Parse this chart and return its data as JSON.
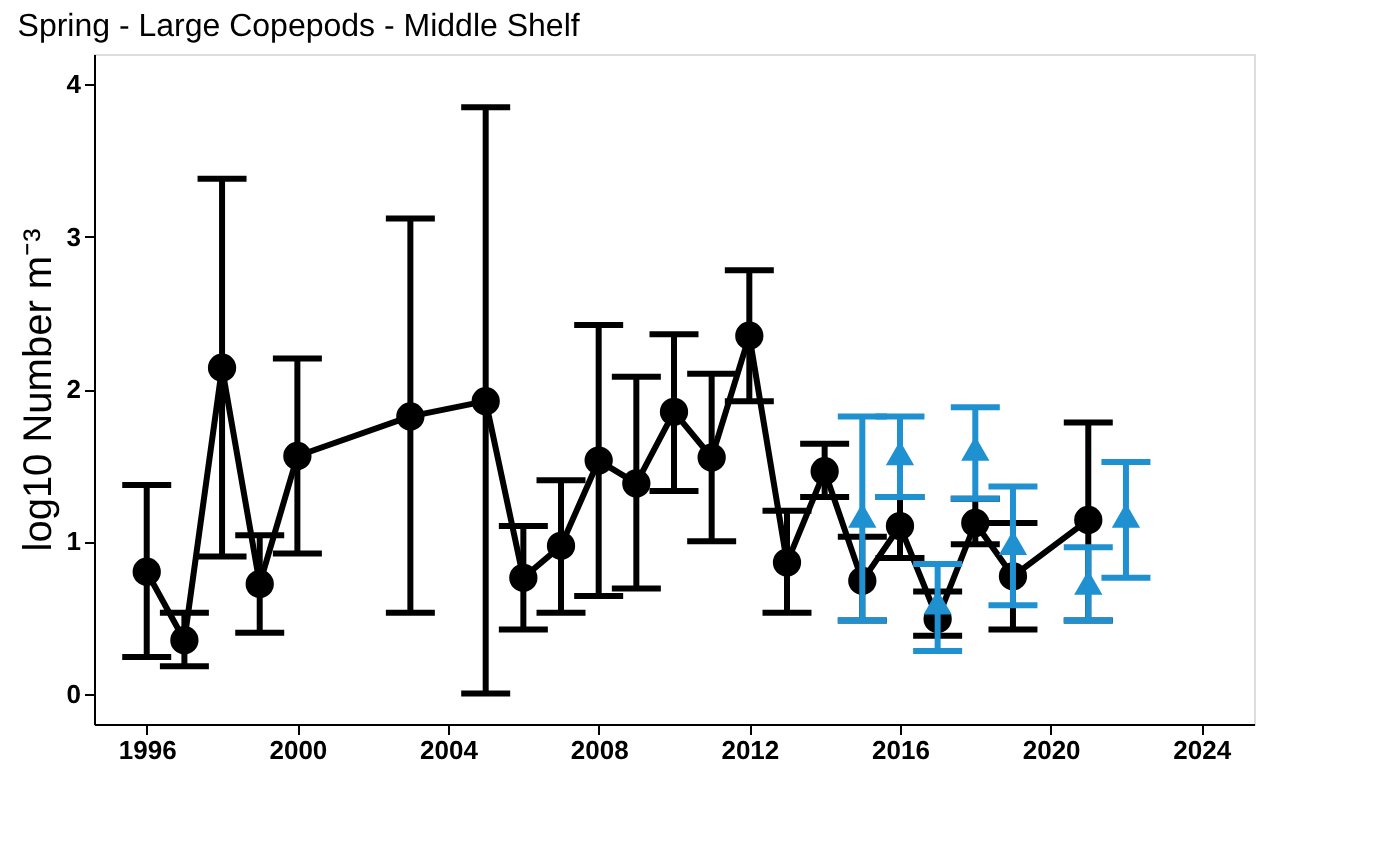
{
  "chart_data": {
    "type": "line",
    "title": "Spring - Large Copepods - Middle Shelf",
    "ylabel": "log10 Number m⁻³",
    "xlim": [
      1994.6,
      2025.4
    ],
    "xticks": [
      1996,
      2000,
      2004,
      2008,
      2012,
      2016,
      2020,
      2024
    ],
    "ylim": [
      -0.2,
      4.2
    ],
    "yticks": [
      0,
      1,
      2,
      3,
      4
    ],
    "grid": false,
    "series": [
      {
        "color": "#000000",
        "marker": "circle",
        "line_style": "solid",
        "x": [
          1996,
          1997,
          1998,
          1999,
          2000,
          2003,
          2005,
          2006,
          2007,
          2008,
          2009,
          2010,
          2011,
          2012,
          2013,
          2014,
          2015,
          2016,
          2017,
          2018,
          2019,
          2021
        ],
        "values": [
          0.8,
          0.35,
          2.14,
          0.72,
          1.56,
          1.82,
          1.92,
          0.76,
          0.97,
          1.53,
          1.38,
          1.85,
          1.55,
          2.35,
          0.86,
          1.46,
          0.74,
          1.1,
          0.49,
          1.12,
          0.77,
          1.14
        ],
        "errors": [
          [
            0.24,
            1.37
          ],
          [
            0.18,
            0.53
          ],
          [
            0.9,
            3.38
          ],
          [
            0.4,
            1.04
          ],
          [
            0.92,
            2.2
          ],
          [
            0.53,
            3.12
          ],
          [
            0.0,
            3.85
          ],
          [
            0.42,
            1.1
          ],
          [
            0.53,
            1.4
          ],
          [
            0.64,
            2.42
          ],
          [
            0.69,
            2.08
          ],
          [
            1.33,
            2.36
          ],
          [
            1.0,
            2.1
          ],
          [
            1.92,
            2.78
          ],
          [
            0.53,
            1.2
          ],
          [
            1.29,
            1.64
          ],
          [
            0.48,
            1.03
          ],
          [
            0.89,
            1.29
          ],
          [
            0.38,
            0.67
          ],
          [
            0.98,
            1.28
          ],
          [
            0.42,
            1.12
          ],
          [
            0.48,
            1.78
          ]
        ]
      },
      {
        "type": "scatter",
        "color": "#1f90d0",
        "marker": "triangle",
        "x": [
          2015,
          2016,
          2017,
          2018,
          2019,
          2021,
          2022
        ],
        "values": [
          1.17,
          1.58,
          0.6,
          1.61,
          0.99,
          0.73,
          1.17
        ],
        "errors": [
          [
            0.48,
            1.82
          ],
          [
            1.29,
            1.82
          ],
          [
            0.28,
            0.85
          ],
          [
            1.28,
            1.88
          ],
          [
            0.58,
            1.36
          ],
          [
            0.48,
            0.96
          ],
          [
            0.76,
            1.52
          ]
        ]
      }
    ]
  }
}
